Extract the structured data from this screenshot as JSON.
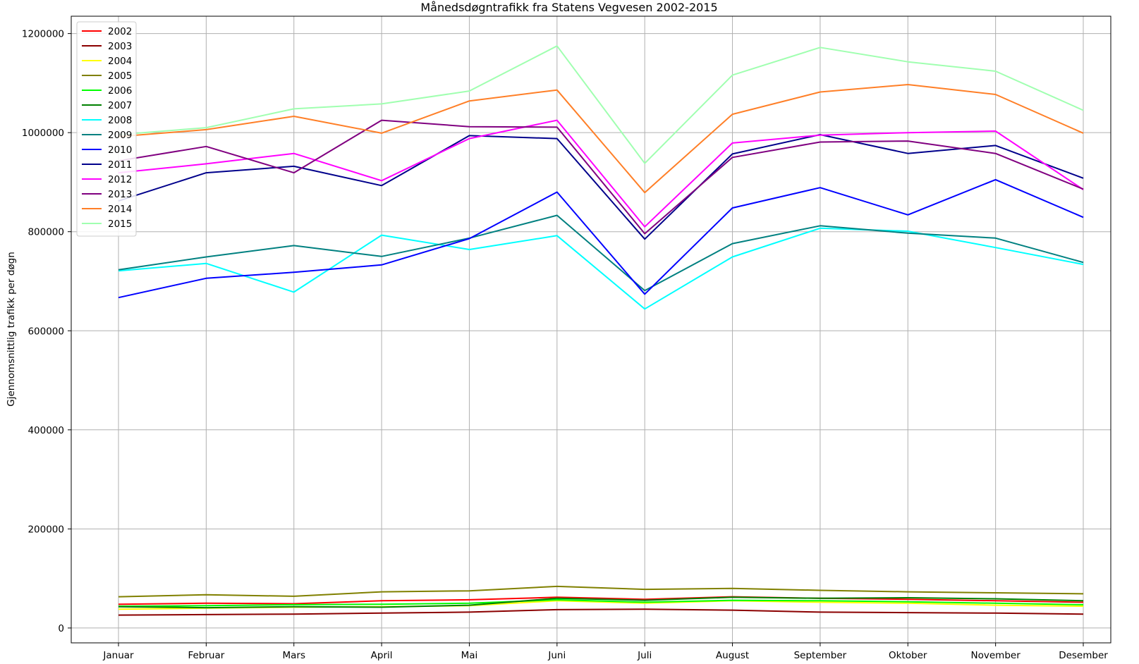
{
  "chart_data": {
    "type": "line",
    "title": "Månedsdøgntrafikk fra Statens Vegvesen 2002-2015",
    "xlabel": "",
    "ylabel": "Gjennomsnittlig trafikk per døgn",
    "categories": [
      "Januar",
      "Februar",
      "Mars",
      "April",
      "Mai",
      "Juni",
      "Juli",
      "August",
      "September",
      "Oktober",
      "November",
      "Desember"
    ],
    "yticks": [
      "0",
      "200000",
      "400000",
      "600000",
      "800000",
      "1000000",
      "1200000"
    ],
    "ylim": [
      -30000,
      1235000
    ],
    "grid": true,
    "legend_position": "top-left",
    "series": [
      {
        "name": "2002",
        "color": "#ff0000",
        "values": [
          48000,
          50000,
          49000,
          55000,
          57000,
          62000,
          58000,
          63000,
          60000,
          58000,
          55000,
          52000
        ]
      },
      {
        "name": "2003",
        "color": "#8b0000",
        "values": [
          26000,
          27000,
          28000,
          30000,
          32000,
          37000,
          38000,
          36000,
          32000,
          31000,
          30000,
          28000
        ]
      },
      {
        "name": "2004",
        "color": "#ffff00",
        "values": [
          38000,
          40000,
          42000,
          43000,
          45000,
          55000,
          50000,
          55000,
          52000,
          50000,
          46000,
          44000
        ]
      },
      {
        "name": "2005",
        "color": "#808000",
        "values": [
          63000,
          67000,
          64000,
          73000,
          75000,
          84000,
          78000,
          80000,
          76000,
          73000,
          71000,
          69000
        ]
      },
      {
        "name": "2006",
        "color": "#00ff00",
        "values": [
          44000,
          45000,
          47000,
          48000,
          50000,
          57000,
          52000,
          56000,
          55000,
          53000,
          50000,
          47000
        ]
      },
      {
        "name": "2007",
        "color": "#008000",
        "values": [
          43000,
          41000,
          43000,
          42000,
          46000,
          60000,
          56000,
          62000,
          60000,
          61000,
          59000,
          55000
        ]
      },
      {
        "name": "2008",
        "color": "#00ffff",
        "values": [
          721000,
          736000,
          678000,
          793000,
          764000,
          792000,
          644000,
          749000,
          807000,
          801000,
          768000,
          734000
        ]
      },
      {
        "name": "2009",
        "color": "#008080",
        "values": [
          723000,
          749000,
          772000,
          750000,
          787000,
          833000,
          681000,
          776000,
          812000,
          797000,
          787000,
          738000
        ]
      },
      {
        "name": "2010",
        "color": "#0000ff",
        "values": [
          667000,
          706000,
          718000,
          733000,
          786000,
          880000,
          674000,
          848000,
          889000,
          834000,
          905000,
          829000
        ]
      },
      {
        "name": "2011",
        "color": "#00008b",
        "values": [
          862000,
          919000,
          932000,
          893000,
          994000,
          988000,
          785000,
          957000,
          996000,
          958000,
          974000,
          908000
        ]
      },
      {
        "name": "2012",
        "color": "#ff00ff",
        "values": [
          919000,
          937000,
          958000,
          903000,
          988000,
          1025000,
          810000,
          979000,
          995000,
          1000000,
          1003000,
          885000
        ]
      },
      {
        "name": "2013",
        "color": "#800080",
        "values": [
          943000,
          972000,
          919000,
          1025000,
          1012000,
          1011000,
          796000,
          950000,
          981000,
          983000,
          958000,
          886000
        ]
      },
      {
        "name": "2014",
        "color": "#ff7f27",
        "values": [
          992000,
          1006000,
          1033000,
          999000,
          1064000,
          1086000,
          879000,
          1037000,
          1082000,
          1097000,
          1077000,
          999000
        ]
      },
      {
        "name": "2015",
        "color": "#a0ffb0",
        "values": [
          996000,
          1010000,
          1048000,
          1058000,
          1084000,
          1175000,
          938000,
          1116000,
          1172000,
          1143000,
          1124000,
          1045000
        ]
      }
    ]
  }
}
